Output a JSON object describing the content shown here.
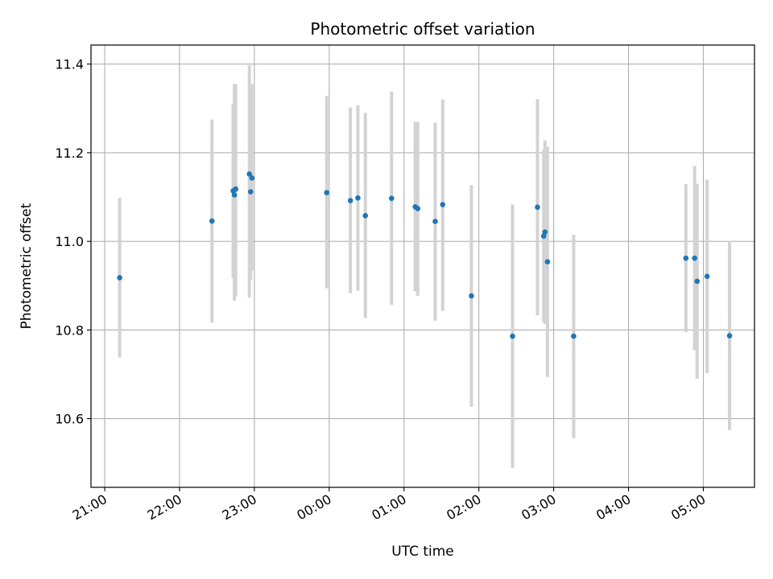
{
  "chart_data": {
    "type": "scatter",
    "title": "Photometric offset variation",
    "xlabel": "UTC time",
    "ylabel": "Photometric offset",
    "grid": true,
    "x_tick_labels": [
      "21:00",
      "22:00",
      "23:00",
      "00:00",
      "01:00",
      "02:00",
      "03:00",
      "04:00",
      "05:00"
    ],
    "y_tick_labels": [
      "10.6",
      "10.8",
      "11.0",
      "11.2",
      "11.4"
    ],
    "x_range": [
      "2000-01-01T20:49:00",
      "2000-01-02T05:41:00"
    ],
    "ylim": [
      10.445,
      11.443
    ],
    "colors": {
      "point": "#1f77b4",
      "errorbar": "#d3d3d3",
      "grid": "#b0b0b0"
    },
    "series": [
      {
        "errorbars": "gray vertical bars",
        "points": [
          {
            "x": "2000-01-01T21:12:00",
            "y": 10.918,
            "low": 10.738,
            "high": 11.098
          },
          {
            "x": "2000-01-01T22:26:00",
            "y": 11.046,
            "low": 10.817,
            "high": 11.275
          },
          {
            "x": "2000-01-01T22:43:00",
            "y": 11.114,
            "low": 10.917,
            "high": 11.311
          },
          {
            "x": "2000-01-01T22:44:00",
            "y": 11.105,
            "low": 10.866,
            "high": 11.355
          },
          {
            "x": "2000-01-01T22:45:00",
            "y": 11.118,
            "low": 10.876,
            "high": 11.354
          },
          {
            "x": "2000-01-01T22:56:00",
            "y": 11.152,
            "low": 10.873,
            "high": 11.397
          },
          {
            "x": "2000-01-01T22:57:00",
            "y": 11.112,
            "low": 10.913,
            "high": 11.311
          },
          {
            "x": "2000-01-01T22:58:00",
            "y": 11.143,
            "low": 10.934,
            "high": 11.355
          },
          {
            "x": "2000-01-01T23:58:00",
            "y": 11.11,
            "low": 10.894,
            "high": 11.328
          },
          {
            "x": "2000-01-02T00:17:00",
            "y": 11.092,
            "low": 10.883,
            "high": 11.302
          },
          {
            "x": "2000-01-02T00:23:00",
            "y": 11.098,
            "low": 10.889,
            "high": 11.307
          },
          {
            "x": "2000-01-02T00:29:00",
            "y": 11.058,
            "low": 10.827,
            "high": 11.29
          },
          {
            "x": "2000-01-02T00:50:00",
            "y": 11.097,
            "low": 10.857,
            "high": 11.338
          },
          {
            "x": "2000-01-02T01:09:00",
            "y": 11.078,
            "low": 10.887,
            "high": 11.27
          },
          {
            "x": "2000-01-02T01:11:00",
            "y": 11.074,
            "low": 10.877,
            "high": 11.27
          },
          {
            "x": "2000-01-02T01:25:00",
            "y": 11.045,
            "low": 10.821,
            "high": 11.268
          },
          {
            "x": "2000-01-02T01:31:00",
            "y": 11.083,
            "low": 10.843,
            "high": 11.32
          },
          {
            "x": "2000-01-02T01:54:00",
            "y": 10.877,
            "low": 10.627,
            "high": 11.127
          },
          {
            "x": "2000-01-02T02:27:00",
            "y": 10.786,
            "low": 10.489,
            "high": 11.083
          },
          {
            "x": "2000-01-02T02:47:00",
            "y": 11.077,
            "low": 10.833,
            "high": 11.321
          },
          {
            "x": "2000-01-02T02:52:00",
            "y": 11.012,
            "low": 10.818,
            "high": 11.207
          },
          {
            "x": "2000-01-02T02:53:00",
            "y": 11.021,
            "low": 10.814,
            "high": 11.228
          },
          {
            "x": "2000-01-02T02:55:00",
            "y": 10.954,
            "low": 10.694,
            "high": 11.214
          },
          {
            "x": "2000-01-02T03:16:00",
            "y": 10.786,
            "low": 10.556,
            "high": 11.015
          },
          {
            "x": "2000-01-02T04:46:00",
            "y": 10.962,
            "low": 10.795,
            "high": 11.129
          },
          {
            "x": "2000-01-02T04:53:00",
            "y": 10.962,
            "low": 10.754,
            "high": 11.17
          },
          {
            "x": "2000-01-02T04:55:00",
            "y": 10.91,
            "low": 10.69,
            "high": 11.13
          },
          {
            "x": "2000-01-02T05:03:00",
            "y": 10.921,
            "low": 10.703,
            "high": 11.139
          },
          {
            "x": "2000-01-02T05:21:00",
            "y": 10.787,
            "low": 10.574,
            "high": 11.0
          }
        ]
      }
    ]
  }
}
